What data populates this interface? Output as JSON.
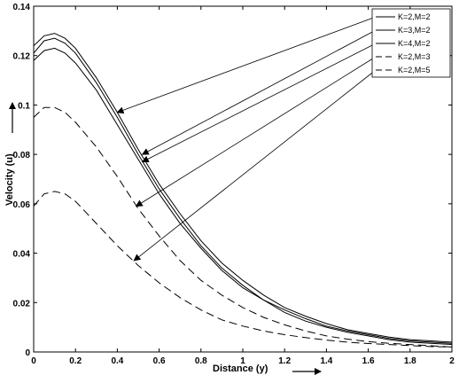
{
  "chart_data": {
    "type": "line",
    "xlabel": "Distance (y)",
    "ylabel": "Velocity (u)",
    "xlim": [
      0,
      2
    ],
    "ylim": [
      0,
      0.14
    ],
    "xticks": [
      "0",
      "0.2",
      "0.4",
      "0.6",
      "0.8",
      "1",
      "1.2",
      "1.4",
      "1.6",
      "1.8",
      "2"
    ],
    "yticks": [
      "0",
      "0.02",
      "0.04",
      "0.06",
      "0.08",
      "0.1",
      "0.12",
      "0.14"
    ],
    "grid": false,
    "legend_position": "top-right",
    "x": [
      0,
      0.05,
      0.1,
      0.15,
      0.2,
      0.3,
      0.4,
      0.5,
      0.6,
      0.7,
      0.8,
      0.9,
      1.0,
      1.1,
      1.2,
      1.3,
      1.4,
      1.5,
      1.6,
      1.7,
      1.8,
      1.9,
      2.0
    ],
    "series": [
      {
        "name": "K=2,M=2",
        "style": "solid",
        "values": [
          0.124,
          0.128,
          0.129,
          0.127,
          0.123,
          0.111,
          0.097,
          0.082,
          0.068,
          0.056,
          0.045,
          0.036,
          0.029,
          0.023,
          0.018,
          0.0145,
          0.0115,
          0.009,
          0.0075,
          0.006,
          0.005,
          0.0045,
          0.004
        ]
      },
      {
        "name": "K=3,M=2",
        "style": "solid",
        "values": [
          0.121,
          0.126,
          0.127,
          0.125,
          0.121,
          0.109,
          0.095,
          0.08,
          0.066,
          0.054,
          0.043,
          0.034,
          0.027,
          0.021,
          0.017,
          0.0135,
          0.0105,
          0.0085,
          0.007,
          0.0055,
          0.0045,
          0.004,
          0.0035
        ]
      },
      {
        "name": "K=4,M=2",
        "style": "solid",
        "values": [
          0.118,
          0.122,
          0.123,
          0.121,
          0.117,
          0.106,
          0.092,
          0.078,
          0.064,
          0.052,
          0.042,
          0.033,
          0.026,
          0.021,
          0.016,
          0.0125,
          0.01,
          0.008,
          0.0065,
          0.005,
          0.004,
          0.0035,
          0.003
        ]
      },
      {
        "name": "K=2,M=3",
        "style": "dashed",
        "values": [
          0.095,
          0.099,
          0.099,
          0.097,
          0.093,
          0.083,
          0.071,
          0.058,
          0.047,
          0.037,
          0.029,
          0.023,
          0.018,
          0.014,
          0.011,
          0.0085,
          0.0065,
          0.0052,
          0.0042,
          0.0035,
          0.003,
          0.0025,
          0.002
        ]
      },
      {
        "name": "K=2,M=5",
        "style": "dashed",
        "values": [
          0.059,
          0.064,
          0.065,
          0.064,
          0.061,
          0.052,
          0.043,
          0.035,
          0.028,
          0.022,
          0.017,
          0.013,
          0.0105,
          0.0085,
          0.007,
          0.0058,
          0.0048,
          0.004,
          0.0034,
          0.003,
          0.0026,
          0.0022,
          0.002
        ]
      }
    ],
    "annotations": [
      {
        "series": "K=2,M=2",
        "point": [
          0.4,
          0.097
        ]
      },
      {
        "series": "K=3,M=2",
        "point": [
          0.52,
          0.08
        ]
      },
      {
        "series": "K=4,M=2",
        "point": [
          0.52,
          0.077
        ]
      },
      {
        "series": "K=2,M=3",
        "point": [
          0.49,
          0.059
        ]
      },
      {
        "series": "K=2,M=5",
        "point": [
          0.48,
          0.037
        ]
      }
    ]
  }
}
